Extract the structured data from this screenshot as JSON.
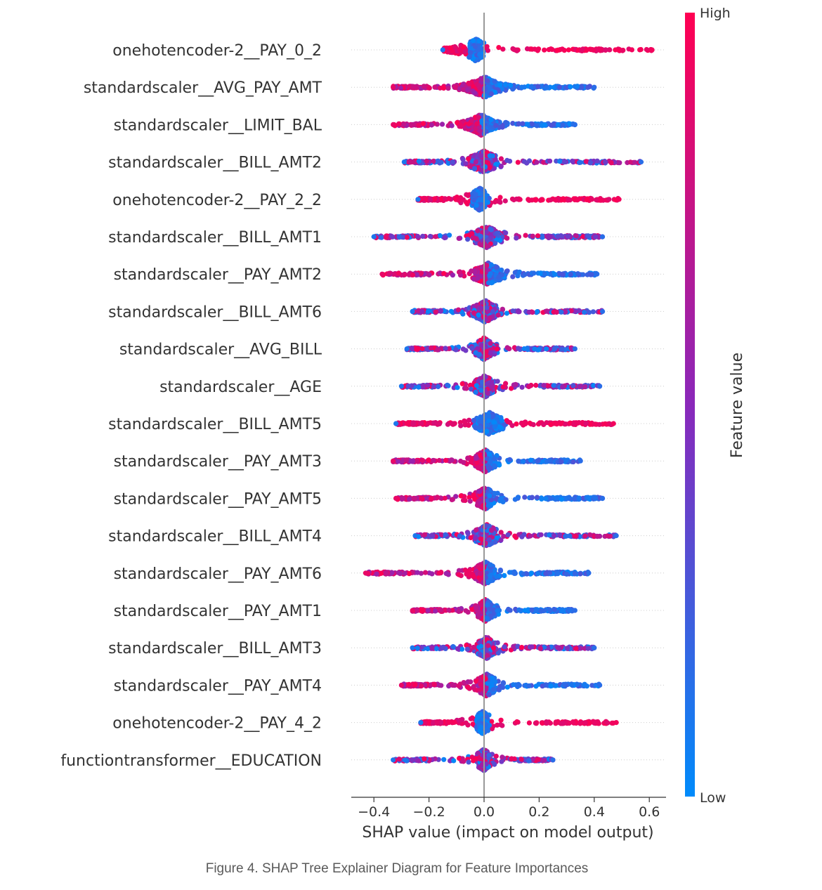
{
  "chart_data": {
    "type": "scatter",
    "subtype": "shap-beeswarm",
    "xlabel": "SHAP value (impact on model output)",
    "xlim": [
      -0.48,
      0.66
    ],
    "xticks": [
      -0.4,
      -0.2,
      0.0,
      0.2,
      0.4,
      0.6
    ],
    "xtick_labels": [
      "−0.4",
      "−0.2",
      "0.0",
      "0.2",
      "0.4",
      "0.6"
    ],
    "grid": false,
    "colorbar": {
      "label": "Feature value",
      "high": "High",
      "low": "Low",
      "low_color": "#008bfb",
      "mid_color": "#8a28ba",
      "high_color": "#ff0052"
    },
    "colors": {
      "zero_line": "#999999",
      "guide_line": "#cccccc"
    },
    "features": [
      {
        "name": "onehotencoder-2__PAY_0_2",
        "min": -0.15,
        "max": 0.61,
        "core": [
          -0.06,
          0.0
        ],
        "high_side": "positive"
      },
      {
        "name": "standardscaler__AVG_PAY_AMT",
        "min": -0.33,
        "max": 0.4,
        "core": [
          -0.1,
          0.1
        ],
        "high_side": "negative"
      },
      {
        "name": "standardscaler__LIMIT_BAL",
        "min": -0.33,
        "max": 0.33,
        "core": [
          -0.1,
          0.08
        ],
        "high_side": "negative"
      },
      {
        "name": "standardscaler__BILL_AMT2",
        "min": -0.29,
        "max": 0.57,
        "core": [
          -0.06,
          0.06
        ],
        "high_side": "mixed"
      },
      {
        "name": "onehotencoder-2__PAY_2_2",
        "min": -0.24,
        "max": 0.49,
        "core": [
          -0.05,
          0.02
        ],
        "high_side": "positive"
      },
      {
        "name": "standardscaler__BILL_AMT1",
        "min": -0.4,
        "max": 0.43,
        "core": [
          -0.06,
          0.08
        ],
        "high_side": "mixed"
      },
      {
        "name": "standardscaler__PAY_AMT2",
        "min": -0.37,
        "max": 0.41,
        "core": [
          -0.05,
          0.08
        ],
        "high_side": "negative"
      },
      {
        "name": "standardscaler__BILL_AMT6",
        "min": -0.26,
        "max": 0.43,
        "core": [
          -0.05,
          0.06
        ],
        "high_side": "mixed"
      },
      {
        "name": "standardscaler__AVG_BILL",
        "min": -0.28,
        "max": 0.33,
        "core": [
          -0.05,
          0.05
        ],
        "high_side": "mixed"
      },
      {
        "name": "standardscaler__AGE",
        "min": -0.3,
        "max": 0.42,
        "core": [
          -0.04,
          0.05
        ],
        "high_side": "mixed"
      },
      {
        "name": "standardscaler__BILL_AMT5",
        "min": -0.32,
        "max": 0.47,
        "core": [
          -0.04,
          0.08
        ],
        "high_side": "positive"
      },
      {
        "name": "standardscaler__PAY_AMT3",
        "min": -0.33,
        "max": 0.35,
        "core": [
          -0.04,
          0.05
        ],
        "high_side": "negative"
      },
      {
        "name": "standardscaler__PAY_AMT5",
        "min": -0.32,
        "max": 0.43,
        "core": [
          -0.04,
          0.05
        ],
        "high_side": "negative"
      },
      {
        "name": "standardscaler__BILL_AMT4",
        "min": -0.25,
        "max": 0.48,
        "core": [
          -0.04,
          0.06
        ],
        "high_side": "mixed"
      },
      {
        "name": "standardscaler__PAY_AMT6",
        "min": -0.43,
        "max": 0.38,
        "core": [
          -0.04,
          0.05
        ],
        "high_side": "negative"
      },
      {
        "name": "standardscaler__PAY_AMT1",
        "min": -0.26,
        "max": 0.33,
        "core": [
          -0.04,
          0.05
        ],
        "high_side": "negative"
      },
      {
        "name": "standardscaler__BILL_AMT3",
        "min": -0.26,
        "max": 0.4,
        "core": [
          -0.03,
          0.05
        ],
        "high_side": "mixed"
      },
      {
        "name": "standardscaler__PAY_AMT4",
        "min": -0.3,
        "max": 0.42,
        "core": [
          -0.03,
          0.05
        ],
        "high_side": "negative"
      },
      {
        "name": "onehotencoder-2__PAY_4_2",
        "min": -0.23,
        "max": 0.48,
        "core": [
          -0.03,
          0.02
        ],
        "high_side": "positive"
      },
      {
        "name": "functiontransformer__EDUCATION",
        "min": -0.33,
        "max": 0.25,
        "core": [
          -0.03,
          0.03
        ],
        "high_side": "mixed"
      }
    ]
  },
  "caption": "Figure 4. SHAP Tree Explainer Diagram for Feature Importances"
}
